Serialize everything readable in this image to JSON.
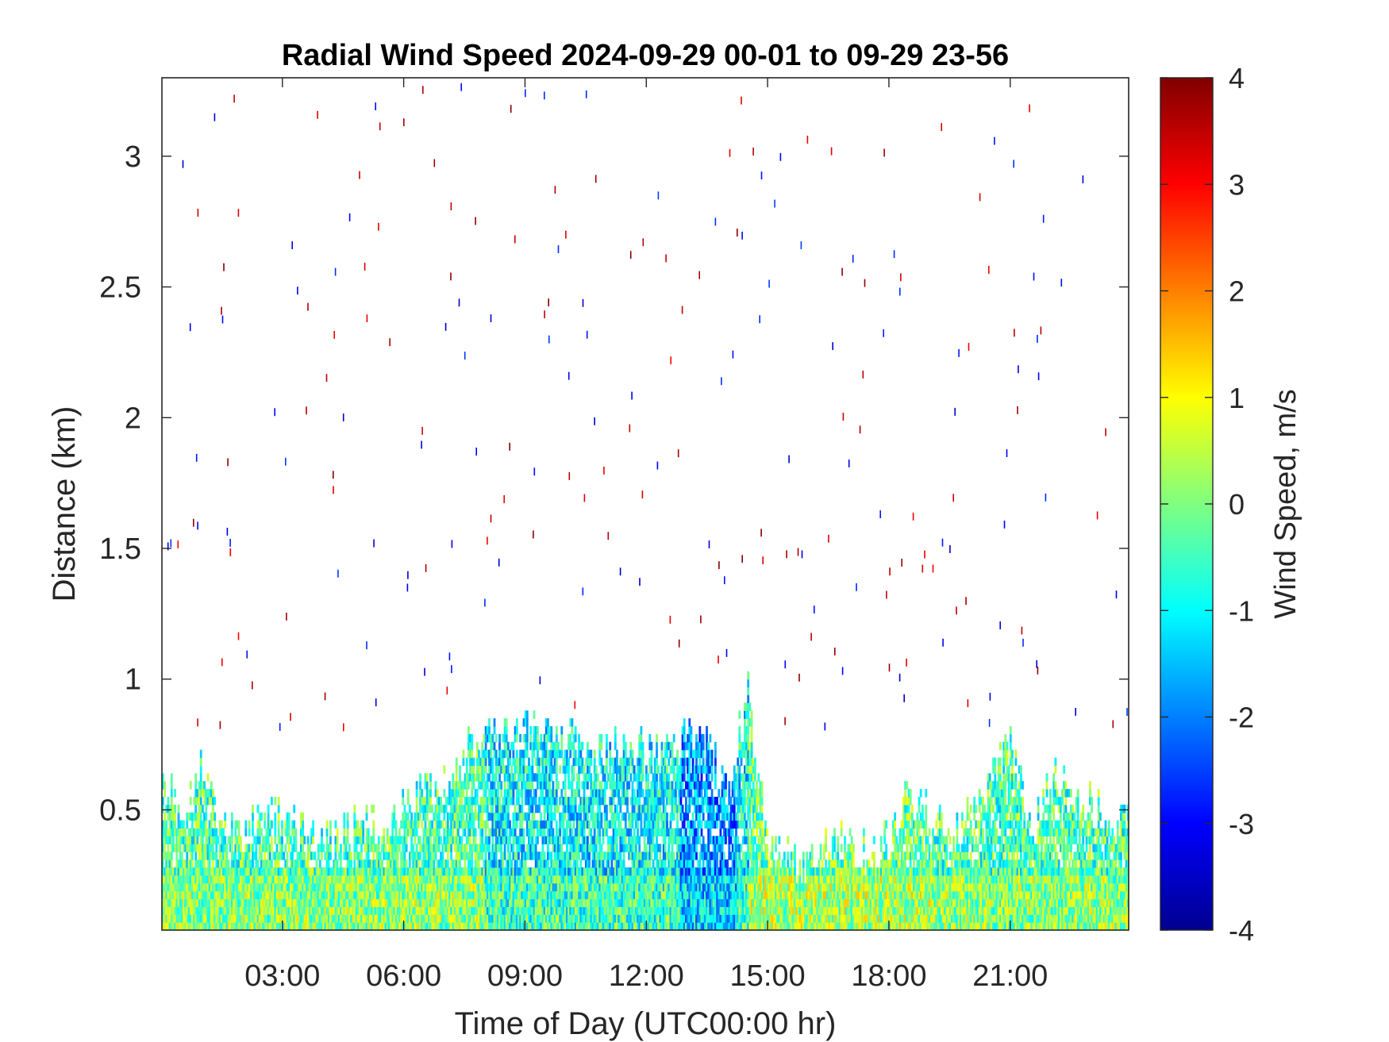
{
  "chart_data": {
    "type": "heatmap",
    "title": "Radial Wind Speed 2024-09-29 00-01 to 09-29 23-56",
    "xlabel": "Time of Day (UTC00:00 hr)",
    "ylabel": "Distance (km)",
    "colorbar_label": "Wind Speed, m/s",
    "x_units": "hours",
    "xlim": [
      0.02,
      23.93
    ],
    "ylim": [
      0.04,
      3.3
    ],
    "clim": [
      -4,
      4
    ],
    "colormap": "jet",
    "x_ticks": [
      3,
      6,
      9,
      12,
      15,
      18,
      21
    ],
    "x_tick_labels": [
      "03:00",
      "06:00",
      "09:00",
      "12:00",
      "15:00",
      "18:00",
      "21:00"
    ],
    "y_ticks": [
      0.5,
      1,
      1.5,
      2,
      2.5,
      3
    ],
    "y_tick_labels": [
      "0.5",
      "1",
      "1.5",
      "2",
      "2.5",
      "3"
    ],
    "colorbar_ticks": [
      4,
      3,
      2,
      1,
      0,
      -1,
      -2,
      -3,
      -4
    ],
    "colorbar_tick_labels": [
      "4",
      "3",
      "2",
      "1",
      "0",
      "-1",
      "-2",
      "-3",
      "-4"
    ],
    "grid": false,
    "signal_top_km": [
      [
        0.0,
        0.6
      ],
      [
        0.5,
        0.5
      ],
      [
        1.0,
        0.65
      ],
      [
        1.5,
        0.4
      ],
      [
        2.0,
        0.4
      ],
      [
        2.5,
        0.45
      ],
      [
        3.0,
        0.45
      ],
      [
        3.5,
        0.38
      ],
      [
        4.0,
        0.38
      ],
      [
        4.5,
        0.4
      ],
      [
        5.0,
        0.45
      ],
      [
        5.5,
        0.4
      ],
      [
        6.0,
        0.5
      ],
      [
        6.5,
        0.55
      ],
      [
        7.0,
        0.62
      ],
      [
        7.5,
        0.7
      ],
      [
        8.0,
        0.75
      ],
      [
        8.5,
        0.78
      ],
      [
        9.0,
        0.78
      ],
      [
        9.5,
        0.8
      ],
      [
        10.0,
        0.78
      ],
      [
        10.5,
        0.7
      ],
      [
        11.0,
        0.72
      ],
      [
        11.5,
        0.75
      ],
      [
        12.0,
        0.7
      ],
      [
        12.5,
        0.7
      ],
      [
        13.0,
        0.75
      ],
      [
        13.5,
        0.75
      ],
      [
        14.0,
        0.55
      ],
      [
        14.5,
        0.95
      ],
      [
        15.0,
        0.3
      ],
      [
        15.5,
        0.3
      ],
      [
        16.0,
        0.28
      ],
      [
        16.5,
        0.35
      ],
      [
        17.0,
        0.4
      ],
      [
        17.5,
        0.3
      ],
      [
        18.0,
        0.4
      ],
      [
        18.5,
        0.55
      ],
      [
        19.0,
        0.45
      ],
      [
        19.5,
        0.4
      ],
      [
        20.0,
        0.45
      ],
      [
        20.5,
        0.6
      ],
      [
        21.0,
        0.75
      ],
      [
        21.5,
        0.4
      ],
      [
        22.0,
        0.6
      ],
      [
        22.5,
        0.55
      ],
      [
        23.0,
        0.5
      ],
      [
        23.5,
        0.45
      ],
      [
        23.93,
        0.45
      ]
    ]
  }
}
